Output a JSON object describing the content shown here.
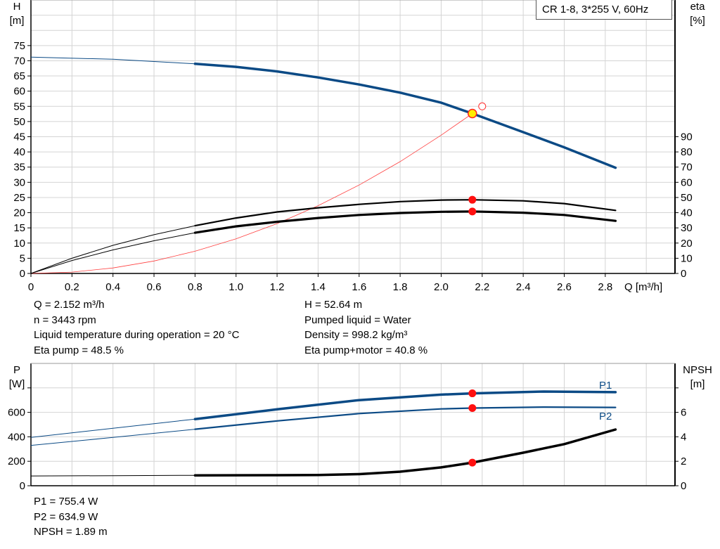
{
  "chart_data": [
    {
      "type": "line",
      "title": "CR 1-8, 3*255 V, 60Hz",
      "xlabel": "Q [m³/h]",
      "ylabel": "H",
      "yunit": "[m]",
      "y2label": "eta",
      "y2unit": "[%]",
      "xlim": [
        0,
        3.14
      ],
      "ylim": [
        0,
        90
      ],
      "y2lim": [
        0,
        180
      ],
      "grid": true,
      "xticks": [
        "0",
        "0.2",
        "0.4",
        "0.6",
        "0.8",
        "1.0",
        "1.2",
        "1.4",
        "1.6",
        "1.8",
        "2.0",
        "2.2",
        "2.4",
        "2.6",
        "2.8"
      ],
      "yticks": [
        "0",
        "5",
        "10",
        "15",
        "20",
        "25",
        "30",
        "35",
        "40",
        "45",
        "50",
        "55",
        "60",
        "65",
        "70",
        "75"
      ],
      "y2ticks": [
        "0",
        "10",
        "20",
        "30",
        "40",
        "50",
        "60",
        "70",
        "80",
        "90"
      ],
      "series": [
        {
          "key": "H",
          "axis": "left",
          "color": "#0b4a85",
          "x": [
            0,
            0.4,
            0.8,
            1.0,
            1.2,
            1.4,
            1.6,
            1.8,
            2.0,
            2.152,
            2.4,
            2.6,
            2.85
          ],
          "y": [
            71.2,
            70.5,
            69,
            68,
            66.5,
            64.5,
            62.2,
            59.5,
            56.2,
            52.64,
            46.5,
            41.5,
            34.8
          ]
        },
        {
          "key": "eta_pump",
          "axis": "right",
          "color": "#000000",
          "x": [
            0,
            0.2,
            0.4,
            0.6,
            0.8,
            1.0,
            1.2,
            1.4,
            1.6,
            1.8,
            2.0,
            2.152,
            2.4,
            2.6,
            2.85
          ],
          "y": [
            0,
            10,
            18.5,
            25.5,
            31.4,
            36.5,
            40.5,
            43.2,
            45.5,
            47.3,
            48.3,
            48.5,
            47.8,
            46,
            41.5
          ]
        },
        {
          "key": "eta_total",
          "axis": "right",
          "color": "#000000",
          "x": [
            0,
            0.2,
            0.4,
            0.6,
            0.8,
            1.0,
            1.2,
            1.4,
            1.6,
            1.8,
            2.0,
            2.152,
            2.4,
            2.6,
            2.85
          ],
          "y": [
            0,
            8.5,
            15.5,
            21.5,
            26.8,
            31,
            34,
            36.5,
            38.5,
            39.8,
            40.6,
            40.8,
            40,
            38.5,
            34.6
          ]
        },
        {
          "key": "system",
          "axis": "left",
          "color": "#ff4040",
          "x": [
            0,
            0.2,
            0.4,
            0.6,
            0.8,
            1.0,
            1.2,
            1.4,
            1.6,
            1.8,
            2.0,
            2.152
          ],
          "y": [
            0,
            0.45,
            1.8,
            4.1,
            7.3,
            11.4,
            16.4,
            22.3,
            29.1,
            36.8,
            45.5,
            52.64
          ]
        }
      ],
      "duty_point": {
        "Q": 2.152,
        "H": 52.64,
        "eta_pump": 48.5,
        "eta_total": 40.8
      },
      "requested_point": {
        "Q": 2.2,
        "H": 55
      }
    },
    {
      "type": "line",
      "ylabel": "P",
      "yunit": "[W]",
      "y2label": "NPSH",
      "y2unit": "[m]",
      "xlim": [
        0,
        3.14
      ],
      "ylim": [
        0,
        1000
      ],
      "y2lim": [
        0,
        10
      ],
      "grid": true,
      "yticks": [
        "0",
        "200",
        "400",
        "600",
        ""
      ],
      "y2ticks": [
        "0",
        "2",
        "4",
        "6",
        ""
      ],
      "series": [
        {
          "key": "P1",
          "name": "P1",
          "axis": "left",
          "color": "#0b4a85",
          "x": [
            0,
            0.4,
            0.8,
            1.2,
            1.6,
            2.0,
            2.152,
            2.5,
            2.85
          ],
          "y": [
            395,
            470,
            545,
            625,
            700,
            745,
            755.4,
            770,
            765
          ]
        },
        {
          "key": "P2",
          "name": "P2",
          "axis": "left",
          "color": "#0b4a85",
          "x": [
            0,
            0.4,
            0.8,
            1.2,
            1.6,
            2.0,
            2.152,
            2.5,
            2.85
          ],
          "y": [
            330,
            395,
            462,
            530,
            590,
            628,
            634.9,
            643,
            640
          ]
        },
        {
          "key": "NPSH",
          "axis": "right",
          "color": "#000000",
          "x": [
            0,
            0.4,
            0.8,
            1.2,
            1.4,
            1.6,
            1.8,
            2.0,
            2.152,
            2.4,
            2.6,
            2.85
          ],
          "y": [
            0.8,
            0.82,
            0.85,
            0.86,
            0.88,
            0.95,
            1.15,
            1.5,
            1.89,
            2.7,
            3.4,
            4.6
          ]
        }
      ],
      "duty_point": {
        "Q": 2.152,
        "P1": 755.4,
        "P2": 634.9,
        "NPSH": 1.89
      }
    }
  ],
  "info_top_left": [
    "Q = 2.152 m³/h",
    "n = 3443 rpm",
    "Liquid temperature during operation = 20 °C",
    "Eta pump = 48.5 %"
  ],
  "info_top_right": [
    "H = 52.64 m",
    "Pumped liquid = Water",
    "Density = 998.2 kg/m³",
    "Eta pump+motor = 40.8 %"
  ],
  "info_bottom": [
    "P1 = 755.4 W",
    "P2 = 634.9 W",
    "NPSH = 1.89 m"
  ]
}
